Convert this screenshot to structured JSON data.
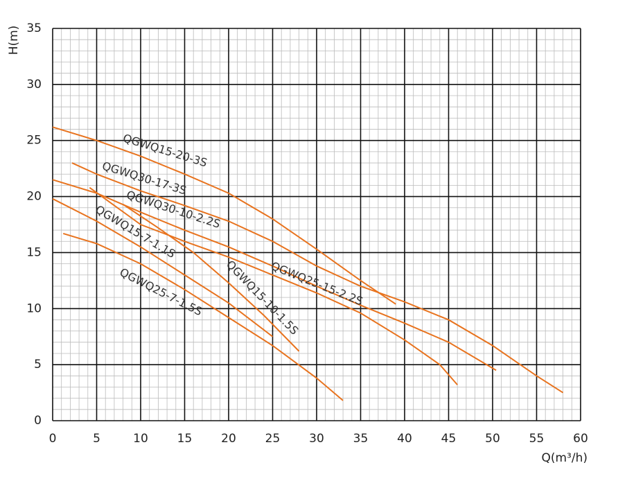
{
  "chart_data": {
    "type": "line",
    "x_label": "Q(m³/h)",
    "y_label": "H(m)",
    "xlim": [
      0,
      60
    ],
    "xticks": [
      0,
      5,
      10,
      15,
      20,
      25,
      30,
      35,
      40,
      45,
      50,
      55,
      60
    ],
    "ylim": [
      0,
      35
    ],
    "yticks": [
      0,
      5,
      10,
      15,
      20,
      25,
      30,
      35
    ],
    "grid": true,
    "minor_grid": true,
    "series": [
      {
        "name": "QGWQ15-20-3S",
        "color": "#e8731e",
        "x": [
          0,
          5,
          10,
          15,
          20,
          25,
          30,
          35,
          39
        ],
        "values": [
          26.2,
          25,
          23.6,
          22,
          20.3,
          18,
          15.3,
          12.5,
          10.4
        ]
      },
      {
        "name": "QGWQ30-17-3S",
        "color": "#e8731e",
        "x": [
          2.2,
          5,
          10,
          15,
          20,
          25,
          30,
          35,
          40,
          45,
          50,
          55,
          58
        ],
        "values": [
          23,
          22,
          20.5,
          19.2,
          17.8,
          16,
          13.8,
          12,
          10.6,
          9,
          6.7,
          4,
          2.5
        ]
      },
      {
        "name": "QGWQ30-10-2.2S",
        "color": "#e8731e",
        "x": [
          0,
          5,
          10,
          15,
          20,
          25,
          30,
          35,
          40,
          45,
          50.4
        ],
        "values": [
          21.5,
          20.3,
          18.6,
          17,
          15.5,
          13.8,
          12,
          10.3,
          8.7,
          7,
          4.5
        ]
      },
      {
        "name": "QGWQ15-7-1.1S",
        "color": "#e8731e",
        "x": [
          0,
          5,
          10,
          15,
          20,
          25
        ],
        "values": [
          19.8,
          17.8,
          15.5,
          13,
          10.5,
          7.5
        ]
      },
      {
        "name": "QGWQ15-10-1.5S",
        "color": "#e8731e",
        "x": [
          8,
          12,
          16,
          20,
          24,
          28
        ],
        "values": [
          19.3,
          17.2,
          15,
          12.3,
          9.4,
          6.2
        ]
      },
      {
        "name": "QGWQ25-15-2.2S",
        "color": "#e8731e",
        "x": [
          4.2,
          10,
          15,
          20,
          25,
          30,
          35,
          40,
          44,
          46
        ],
        "values": [
          20.8,
          17.5,
          16,
          14.6,
          13,
          11.4,
          9.6,
          7.2,
          5,
          3.2
        ]
      },
      {
        "name": "QGWQ25-7-1.5S",
        "color": "#e8731e",
        "x": [
          1.2,
          5,
          10,
          15,
          20,
          25,
          30,
          33
        ],
        "values": [
          16.7,
          15.8,
          14,
          11.7,
          9.2,
          6.7,
          3.8,
          1.8
        ]
      }
    ]
  }
}
